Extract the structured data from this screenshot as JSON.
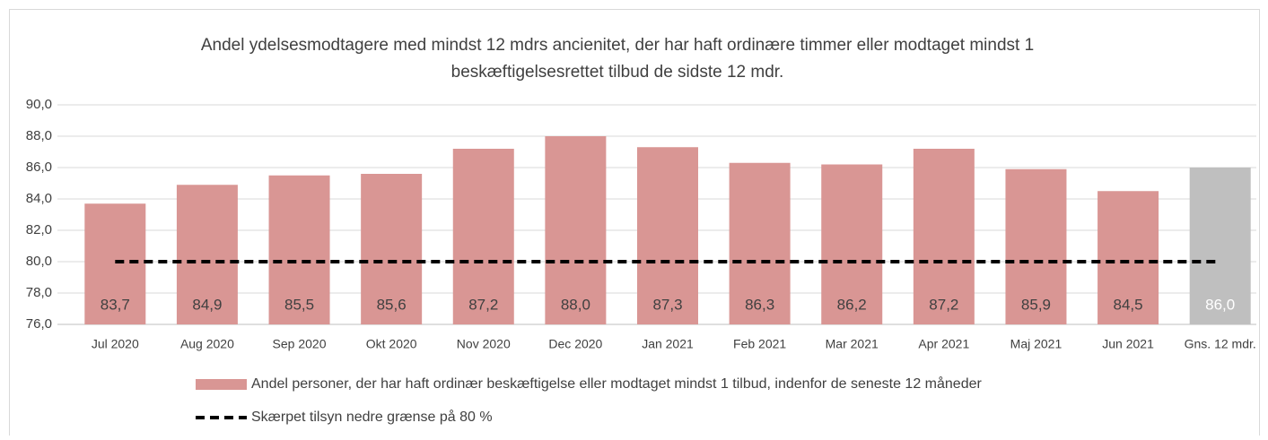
{
  "chart_data": {
    "type": "bar",
    "title": [
      "Andel ydelsesmodtagere med mindst 12 mdrs ancienitet, der har haft ordinære timmer eller modtaget mindst 1",
      "beskæftigelsesrettet tilbud de sidste 12 mdr."
    ],
    "categories": [
      "Jul 2020",
      "Aug 2020",
      "Sep 2020",
      "Okt 2020",
      "Nov 2020",
      "Dec 2020",
      "Jan 2021",
      "Feb 2021",
      "Mar 2021",
      "Apr 2021",
      "Maj 2021",
      "Jun 2021",
      "Gns. 12 mdr."
    ],
    "series": [
      {
        "name": "Andel personer, der har haft ordinær beskæftigelse eller modtaget mindst 1 tilbud, indenfor de seneste 12 måneder",
        "type": "bar",
        "color": "#d99694",
        "colors": [
          "#d99694",
          "#d99694",
          "#d99694",
          "#d99694",
          "#d99694",
          "#d99694",
          "#d99694",
          "#d99694",
          "#d99694",
          "#d99694",
          "#d99694",
          "#d99694",
          "#bfbfbf"
        ],
        "values": [
          83.7,
          84.9,
          85.5,
          85.6,
          87.2,
          88.0,
          87.3,
          86.3,
          86.2,
          87.2,
          85.9,
          84.5,
          86.0
        ],
        "value_labels": [
          "83,7",
          "84,9",
          "85,5",
          "85,6",
          "87,2",
          "88,0",
          "87,3",
          "86,3",
          "86,2",
          "87,2",
          "85,9",
          "84,5",
          "86,0"
        ]
      },
      {
        "name": "Skærpet tilsyn nedre grænse på 80 %",
        "type": "line",
        "color": "#000000",
        "dashed": true,
        "values": [
          80,
          80,
          80,
          80,
          80,
          80,
          80,
          80,
          80,
          80,
          80,
          80,
          80
        ]
      }
    ],
    "ylim": [
      76,
      90
    ],
    "yticks": [
      {
        "value": 76,
        "label": "76,0"
      },
      {
        "value": 78,
        "label": "78,0"
      },
      {
        "value": 80,
        "label": "80,0"
      },
      {
        "value": 82,
        "label": "82,0"
      },
      {
        "value": 84,
        "label": "84,0"
      },
      {
        "value": 86,
        "label": "86,0"
      },
      {
        "value": 88,
        "label": "88,0"
      },
      {
        "value": 90,
        "label": "90,0"
      }
    ],
    "grid": true,
    "legend": "bottom"
  }
}
